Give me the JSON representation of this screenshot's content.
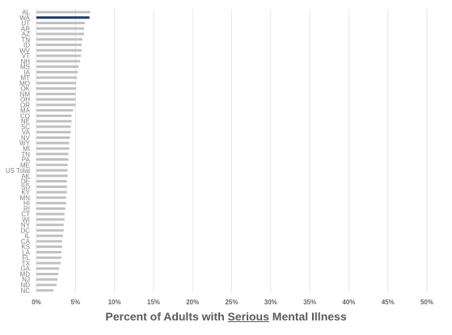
{
  "chart_data": {
    "type": "bar",
    "orientation": "horizontal",
    "categories": [
      "AL",
      "WA",
      "UT",
      "AR",
      "AZ",
      "TN",
      "ID",
      "WV",
      "VT",
      "NH",
      "MS",
      "IA",
      "MT",
      "MO",
      "OK",
      "NM",
      "OH",
      "OR",
      "MA",
      "CO",
      "NE",
      "SC",
      "VA",
      "NV",
      "WY",
      "MI",
      "TN",
      "PA",
      "ME",
      "US Total",
      "AK",
      "DE",
      "SD",
      "KY",
      "MN",
      "HI",
      "RI",
      "CT",
      "WI",
      "NY",
      "DC",
      "IL",
      "CA",
      "KS",
      "LA",
      "FL",
      "TX",
      "GA",
      "MD",
      "NJ",
      "ND",
      "NC"
    ],
    "values": [
      6.9,
      6.8,
      6.2,
      6.1,
      6.1,
      5.9,
      5.8,
      5.8,
      5.7,
      5.6,
      5.4,
      5.3,
      5.2,
      5.1,
      5.1,
      5.0,
      5.0,
      5.0,
      4.7,
      4.5,
      4.5,
      4.4,
      4.4,
      4.3,
      4.2,
      4.2,
      4.1,
      4.1,
      4.0,
      4.0,
      4.0,
      3.9,
      3.9,
      3.9,
      3.8,
      3.8,
      3.7,
      3.6,
      3.6,
      3.5,
      3.5,
      3.4,
      3.3,
      3.3,
      3.2,
      3.2,
      3.1,
      2.9,
      2.8,
      2.7,
      2.6,
      2.2
    ],
    "highlight_category_index": 1,
    "xlim": [
      0,
      50
    ],
    "xticks": [
      "0%",
      "5%",
      "10%",
      "15%",
      "20%",
      "25%",
      "30%",
      "35%",
      "40%",
      "45%",
      "50%"
    ],
    "xlabel_parts": [
      "Percent of Adults with ",
      "Serious",
      " Mental Illness"
    ],
    "grid": true,
    "colors": {
      "bar": "#c0c0c0",
      "highlight": "#1f3864",
      "grid": "#e6e6e6"
    }
  }
}
